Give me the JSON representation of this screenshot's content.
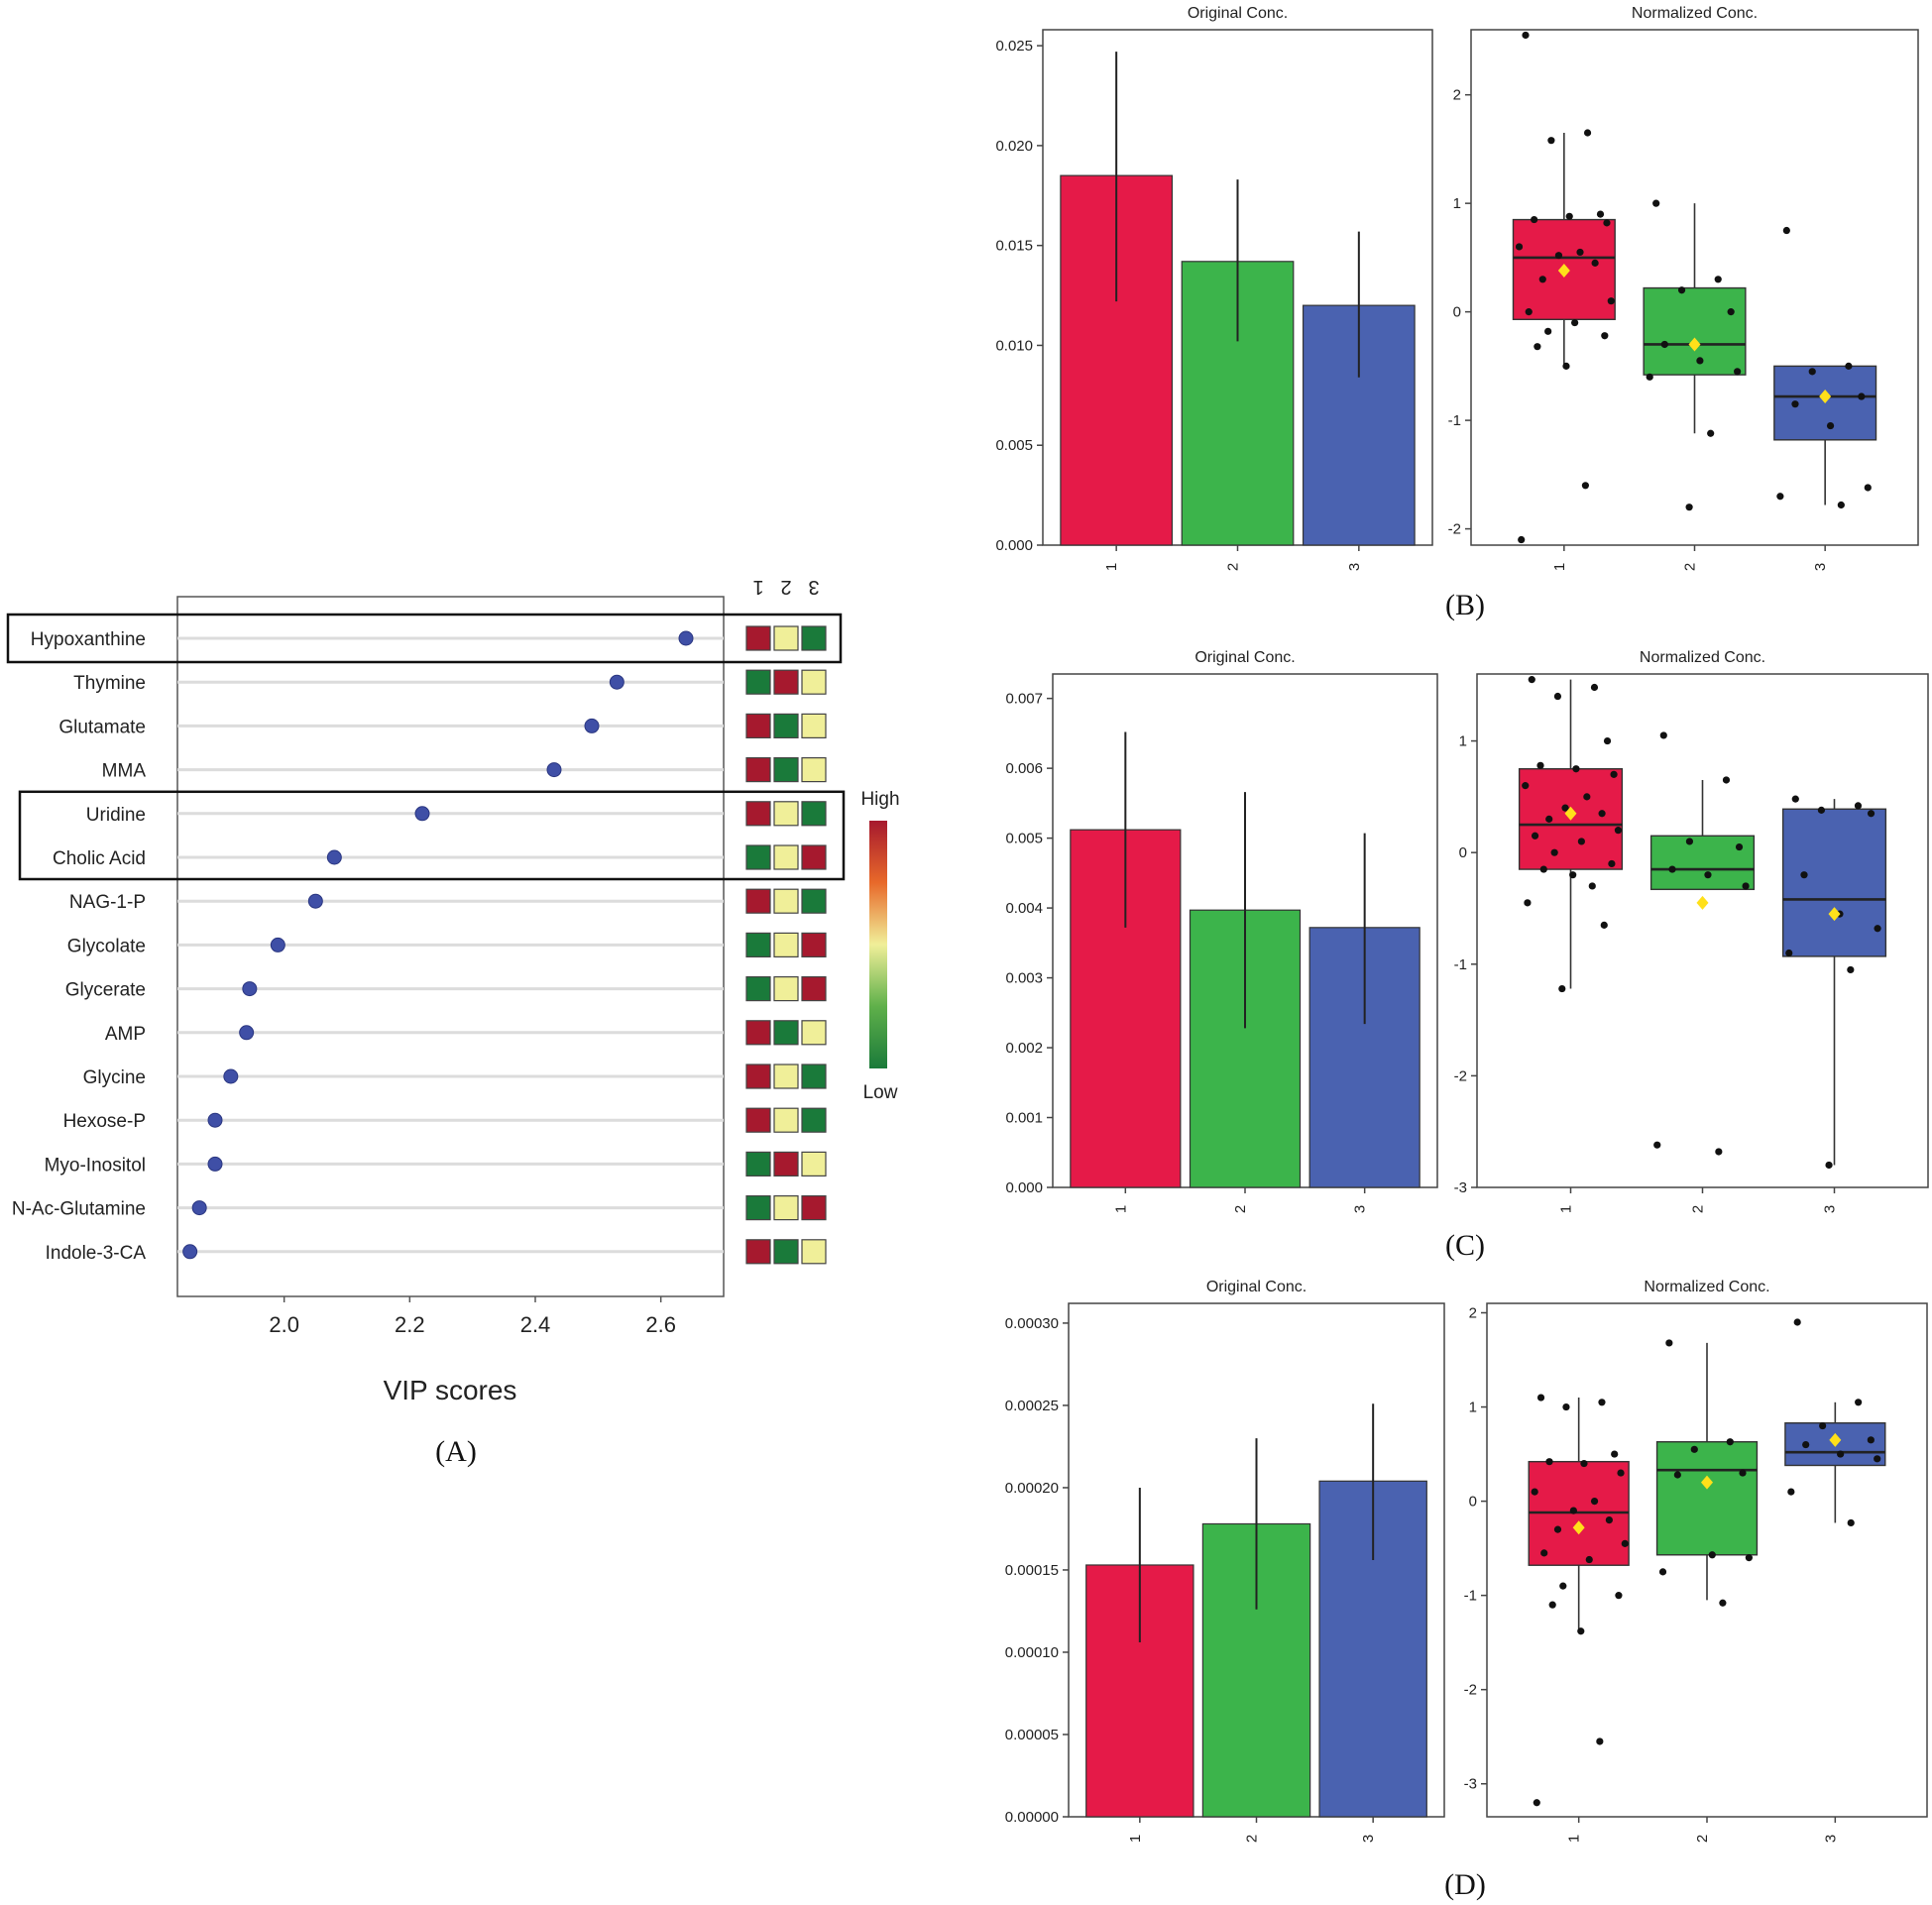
{
  "panel_labels": {
    "A": "(A)",
    "B": "(B)",
    "C": "(C)",
    "D": "(D)"
  },
  "colors": {
    "dot": "#3f4fa6",
    "red": "#e51a48",
    "green": "#3cb44b",
    "blue": "#4a62b0",
    "high": "#a6192e",
    "mid": "#f0ef99",
    "low": "#1a7a3a",
    "mean": "#ffe01a"
  },
  "chart_data": [
    {
      "id": "A",
      "type": "scatter",
      "subtype": "dot-plot",
      "xlabel": "VIP scores",
      "xlim": [
        1.83,
        2.7
      ],
      "xticks": [
        2.0,
        2.2,
        2.4,
        2.6
      ],
      "xtick_labels": [
        "2.0",
        "2.2",
        "2.4",
        "2.6"
      ],
      "group_labels": [
        "1",
        "2",
        "3"
      ],
      "legend": {
        "high": "High",
        "low": "Low"
      },
      "highlighted": [
        "Hypoxanthine",
        "Uridine",
        "Cholic Acid"
      ],
      "features": [
        {
          "name": "Hypoxanthine",
          "vip": 2.64,
          "heat": [
            "high",
            "mid",
            "low"
          ]
        },
        {
          "name": "Thymine",
          "vip": 2.53,
          "heat": [
            "low",
            "high",
            "mid"
          ]
        },
        {
          "name": "Glutamate",
          "vip": 2.49,
          "heat": [
            "high",
            "low",
            "mid"
          ]
        },
        {
          "name": "MMA",
          "vip": 2.43,
          "heat": [
            "high",
            "low",
            "mid"
          ]
        },
        {
          "name": "Uridine",
          "vip": 2.22,
          "heat": [
            "high",
            "mid",
            "low"
          ]
        },
        {
          "name": "Cholic Acid",
          "vip": 2.08,
          "heat": [
            "low",
            "mid",
            "high"
          ]
        },
        {
          "name": "NAG-1-P",
          "vip": 2.05,
          "heat": [
            "high",
            "mid",
            "low"
          ]
        },
        {
          "name": "Glycolate",
          "vip": 1.99,
          "heat": [
            "low",
            "mid",
            "high"
          ]
        },
        {
          "name": "Glycerate",
          "vip": 1.945,
          "heat": [
            "low",
            "mid",
            "high"
          ]
        },
        {
          "name": "AMP",
          "vip": 1.94,
          "heat": [
            "high",
            "low",
            "mid"
          ]
        },
        {
          "name": "Glycine",
          "vip": 1.915,
          "heat": [
            "high",
            "mid",
            "low"
          ]
        },
        {
          "name": "Hexose-P",
          "vip": 1.89,
          "heat": [
            "high",
            "mid",
            "low"
          ]
        },
        {
          "name": "Myo-Inositol",
          "vip": 1.89,
          "heat": [
            "low",
            "high",
            "mid"
          ]
        },
        {
          "name": "N-Ac-Glutamine",
          "vip": 1.865,
          "heat": [
            "low",
            "mid",
            "high"
          ]
        },
        {
          "name": "Indole-3-CA",
          "vip": 1.85,
          "heat": [
            "high",
            "low",
            "mid"
          ]
        }
      ]
    },
    {
      "id": "B-orig",
      "type": "bar",
      "title": "Original Conc.",
      "categories": [
        "1",
        "2",
        "3"
      ],
      "values": [
        0.0185,
        0.0142,
        0.012
      ],
      "err_low": [
        0.0122,
        0.0102,
        0.0084
      ],
      "err_high": [
        0.0247,
        0.0183,
        0.0157
      ],
      "ylim": [
        0,
        0.0258
      ],
      "yticks": [
        0,
        0.005,
        0.01,
        0.015,
        0.02,
        0.025
      ],
      "ytick_labels": [
        "0.000",
        "0.005",
        "0.010",
        "0.015",
        "0.020",
        "0.025"
      ]
    },
    {
      "id": "B-norm",
      "type": "box",
      "title": "Normalized Conc.",
      "categories": [
        "1",
        "2",
        "3"
      ],
      "ylim": [
        -2.15,
        2.6
      ],
      "yticks": [
        -2,
        -1,
        0,
        1,
        2
      ],
      "ytick_labels": [
        "-2",
        "-1",
        "0",
        "1",
        "2"
      ],
      "boxes": [
        {
          "q1": -0.07,
          "median": 0.5,
          "q3": 0.85,
          "whisker_low": -0.5,
          "whisker_high": 1.65,
          "mean": 0.38,
          "points": [
            2.55,
            1.65,
            1.58,
            0.9,
            0.85,
            0.88,
            0.82,
            0.6,
            0.55,
            0.52,
            0.45,
            0.3,
            0.1,
            0.0,
            -0.1,
            -0.18,
            -0.22,
            -0.32,
            -0.5,
            -1.6,
            -2.1
          ]
        },
        {
          "q1": -0.58,
          "median": -0.3,
          "q3": 0.22,
          "whisker_low": -1.12,
          "whisker_high": 1.0,
          "mean": -0.3,
          "points": [
            1.0,
            0.3,
            0.2,
            0.0,
            -0.3,
            -0.45,
            -0.55,
            -0.6,
            -1.12,
            -1.8
          ]
        },
        {
          "q1": -1.18,
          "median": -0.78,
          "q3": -0.5,
          "whisker_low": -1.78,
          "whisker_high": -0.5,
          "mean": -0.78,
          "points": [
            0.75,
            -0.5,
            -0.55,
            -0.78,
            -0.85,
            -1.05,
            -1.62,
            -1.7,
            -1.78
          ]
        }
      ]
    },
    {
      "id": "C-orig",
      "type": "bar",
      "title": "Original Conc.",
      "categories": [
        "1",
        "2",
        "3"
      ],
      "values": [
        0.00512,
        0.00397,
        0.00372
      ],
      "err_low": [
        0.00372,
        0.00228,
        0.00234
      ],
      "err_high": [
        0.00652,
        0.00566,
        0.00507
      ],
      "ylim": [
        0,
        0.00735
      ],
      "yticks": [
        0,
        0.001,
        0.002,
        0.003,
        0.004,
        0.005,
        0.006,
        0.007
      ],
      "ytick_labels": [
        "0.000",
        "0.001",
        "0.002",
        "0.003",
        "0.004",
        "0.005",
        "0.006",
        "0.007"
      ]
    },
    {
      "id": "C-norm",
      "type": "box",
      "title": "Normalized Conc.",
      "categories": [
        "1",
        "2",
        "3"
      ],
      "ylim": [
        -3.0,
        1.6
      ],
      "yticks": [
        -3,
        -2,
        -1,
        0,
        1
      ],
      "ytick_labels": [
        "-3",
        "-2",
        "-1",
        "0",
        "1"
      ],
      "boxes": [
        {
          "q1": -0.15,
          "median": 0.25,
          "q3": 0.75,
          "whisker_low": -1.22,
          "whisker_high": 1.55,
          "mean": 0.35,
          "points": [
            1.55,
            1.48,
            1.4,
            1.0,
            0.78,
            0.75,
            0.7,
            0.6,
            0.5,
            0.4,
            0.35,
            0.3,
            0.2,
            0.15,
            0.1,
            0.0,
            -0.1,
            -0.15,
            -0.2,
            -0.3,
            -0.45,
            -0.65,
            -1.22
          ]
        },
        {
          "q1": -0.33,
          "median": -0.15,
          "q3": 0.15,
          "whisker_low": -0.33,
          "whisker_high": 0.65,
          "mean": -0.45,
          "points": [
            1.05,
            0.65,
            0.1,
            0.05,
            -0.15,
            -0.2,
            -0.3,
            -2.62,
            -2.68
          ]
        },
        {
          "q1": -0.93,
          "median": -0.42,
          "q3": 0.39,
          "whisker_low": -2.8,
          "whisker_high": 0.48,
          "mean": -0.55,
          "points": [
            0.48,
            0.42,
            0.38,
            0.35,
            -0.2,
            -0.55,
            -0.68,
            -0.9,
            -1.05,
            -2.8
          ]
        }
      ]
    },
    {
      "id": "D-orig",
      "type": "bar",
      "title": "Original Conc.",
      "categories": [
        "1",
        "2",
        "3"
      ],
      "values": [
        0.000153,
        0.000178,
        0.000204
      ],
      "err_low": [
        0.000106,
        0.000126,
        0.000156
      ],
      "err_high": [
        0.0002,
        0.00023,
        0.000251
      ],
      "ylim": [
        0,
        0.000312
      ],
      "yticks": [
        0,
        5e-05,
        0.0001,
        0.00015,
        0.0002,
        0.00025,
        0.0003
      ],
      "ytick_labels": [
        "0.00000",
        "0.00005",
        "0.00010",
        "0.00015",
        "0.00020",
        "0.00025",
        "0.00030"
      ]
    },
    {
      "id": "D-norm",
      "type": "box",
      "title": "Normalized Conc.",
      "categories": [
        "1",
        "2",
        "3"
      ],
      "ylim": [
        -3.35,
        2.1
      ],
      "yticks": [
        -3,
        -2,
        -1,
        0,
        1,
        2
      ],
      "ytick_labels": [
        "-3",
        "-2",
        "-1",
        "0",
        "1",
        "2"
      ],
      "boxes": [
        {
          "q1": -0.68,
          "median": -0.12,
          "q3": 0.42,
          "whisker_low": -1.38,
          "whisker_high": 1.1,
          "mean": -0.28,
          "points": [
            1.1,
            1.05,
            1.0,
            0.5,
            0.42,
            0.4,
            0.3,
            0.1,
            0.0,
            -0.1,
            -0.2,
            -0.3,
            -0.45,
            -0.55,
            -0.62,
            -0.9,
            -1.0,
            -1.1,
            -1.38,
            -2.55,
            -3.2
          ]
        },
        {
          "q1": -0.57,
          "median": 0.33,
          "q3": 0.63,
          "whisker_low": -1.05,
          "whisker_high": 1.68,
          "mean": 0.2,
          "points": [
            1.68,
            0.63,
            0.55,
            0.3,
            0.28,
            -0.57,
            -0.6,
            -0.75,
            -1.08
          ]
        },
        {
          "q1": 0.38,
          "median": 0.52,
          "q3": 0.83,
          "whisker_low": -0.23,
          "whisker_high": 1.05,
          "mean": 0.65,
          "points": [
            1.9,
            1.05,
            0.8,
            0.65,
            0.6,
            0.5,
            0.45,
            0.1,
            -0.23
          ]
        }
      ]
    }
  ]
}
